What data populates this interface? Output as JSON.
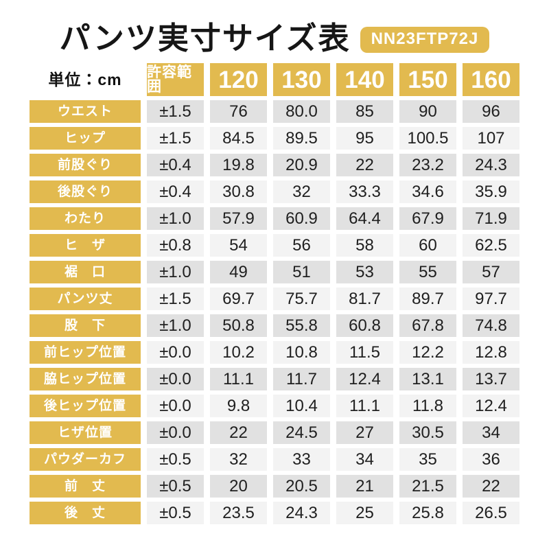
{
  "page": {
    "title": "パンツ実寸サイズ表",
    "product_code": "NN23FTP72J",
    "unit_label": "単位：cm"
  },
  "colors": {
    "gold": "#E2BA4F",
    "row_dark": "#E1E1E1",
    "row_light": "#F3F3F3",
    "text": "#1C1C1C"
  },
  "chart_data": {
    "type": "table",
    "title": "パンツ実寸サイズ表",
    "subtitle_badge": "NN23FTP72J",
    "unit": "cm",
    "columns": [
      "許容範囲",
      "120",
      "130",
      "140",
      "150",
      "160"
    ],
    "rows": [
      {
        "label": "ウエスト",
        "tolerance": "±1.5",
        "values": [
          "76",
          "80.0",
          "85",
          "90",
          "96"
        ]
      },
      {
        "label": "ヒップ",
        "tolerance": "±1.5",
        "values": [
          "84.5",
          "89.5",
          "95",
          "100.5",
          "107"
        ]
      },
      {
        "label": "前股ぐり",
        "tolerance": "±0.4",
        "values": [
          "19.8",
          "20.9",
          "22",
          "23.2",
          "24.3"
        ]
      },
      {
        "label": "後股ぐり",
        "tolerance": "±0.4",
        "values": [
          "30.8",
          "32",
          "33.3",
          "34.6",
          "35.9"
        ]
      },
      {
        "label": "わたり",
        "tolerance": "±1.0",
        "values": [
          "57.9",
          "60.9",
          "64.4",
          "67.9",
          "71.9"
        ]
      },
      {
        "label": "ヒ　ザ",
        "tolerance": "±0.8",
        "values": [
          "54",
          "56",
          "58",
          "60",
          "62.5"
        ]
      },
      {
        "label": "裾　口",
        "tolerance": "±1.0",
        "values": [
          "49",
          "51",
          "53",
          "55",
          "57"
        ]
      },
      {
        "label": "パンツ丈",
        "tolerance": "±1.5",
        "values": [
          "69.7",
          "75.7",
          "81.7",
          "89.7",
          "97.7"
        ]
      },
      {
        "label": "股　下",
        "tolerance": "±1.0",
        "values": [
          "50.8",
          "55.8",
          "60.8",
          "67.8",
          "74.8"
        ]
      },
      {
        "label": "前ヒップ位置",
        "tolerance": "±0.0",
        "values": [
          "10.2",
          "10.8",
          "11.5",
          "12.2",
          "12.8"
        ]
      },
      {
        "label": "脇ヒップ位置",
        "tolerance": "±0.0",
        "values": [
          "11.1",
          "11.7",
          "12.4",
          "13.1",
          "13.7"
        ]
      },
      {
        "label": "後ヒップ位置",
        "tolerance": "±0.0",
        "values": [
          "9.8",
          "10.4",
          "11.1",
          "11.8",
          "12.4"
        ]
      },
      {
        "label": "ヒザ位置",
        "tolerance": "±0.0",
        "values": [
          "22",
          "24.5",
          "27",
          "30.5",
          "34"
        ]
      },
      {
        "label": "パウダーカフ",
        "tolerance": "±0.5",
        "values": [
          "32",
          "33",
          "34",
          "35",
          "36"
        ]
      },
      {
        "label": "前　丈",
        "tolerance": "±0.5",
        "values": [
          "20",
          "20.5",
          "21",
          "21.5",
          "22"
        ]
      },
      {
        "label": "後　丈",
        "tolerance": "±0.5",
        "values": [
          "23.5",
          "24.3",
          "25",
          "25.8",
          "26.5"
        ]
      }
    ]
  }
}
